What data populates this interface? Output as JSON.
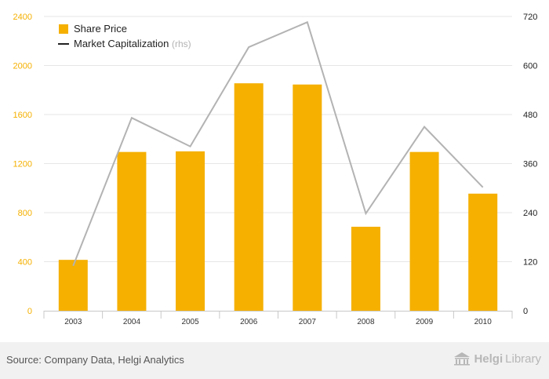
{
  "chart_data": {
    "type": "bar",
    "categories": [
      "2003",
      "2004",
      "2005",
      "2006",
      "2007",
      "2008",
      "2009",
      "2010"
    ],
    "series": [
      {
        "name": "Share Price",
        "kind": "bar",
        "axis": "left",
        "color": "#f5b000",
        "values": [
          415,
          1295,
          1300,
          1855,
          1845,
          685,
          1295,
          955
        ]
      },
      {
        "name": "Market Capitalization",
        "name_suffix": "(rhs)",
        "kind": "line",
        "axis": "right",
        "color": "#b3b3b3",
        "values": [
          110,
          472,
          402,
          645,
          706,
          238,
          450,
          302
        ]
      }
    ],
    "yleft": {
      "ticks": [
        "0",
        "400",
        "800",
        "1200",
        "1600",
        "2000",
        "2400"
      ],
      "lim": [
        0,
        2400
      ],
      "tick_color": "#f5b000"
    },
    "yright": {
      "ticks": [
        "0",
        "120",
        "240",
        "360",
        "480",
        "600",
        "720"
      ],
      "lim": [
        0,
        720
      ],
      "tick_color": "#222222"
    },
    "grid": true,
    "legend_position": "top-left"
  },
  "footer": {
    "source": "Source: Company Data, Helgi Analytics",
    "brand_prefix": "Helgi",
    "brand_suffix": "Library"
  }
}
